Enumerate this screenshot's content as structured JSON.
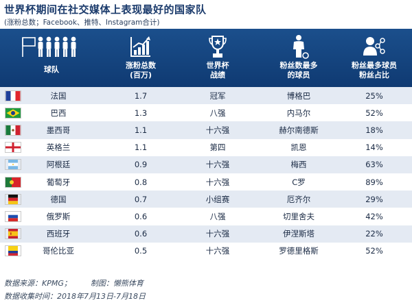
{
  "title": "世界杯期间在社交媒体上表现最好的国家队",
  "subtitle": "(涨粉总数；Facebook、推特、Instagram合计)",
  "columns": [
    {
      "label1": "球队",
      "label2": "",
      "icon": "team-players-icon"
    },
    {
      "label1": "涨粉总数",
      "label2": "(百万)",
      "icon": "growth-chart-icon"
    },
    {
      "label1": "世界杯",
      "label2": "战绩",
      "icon": "trophy-icon"
    },
    {
      "label1": "粉丝数最多",
      "label2": "的球员",
      "icon": "player-icon"
    },
    {
      "label1": "粉丝最多球员",
      "label2": "粉丝占比",
      "icon": "user-share-icon"
    }
  ],
  "rows": [
    {
      "team": "法国",
      "followers": "1.7",
      "result": "冠军",
      "player": "博格巴",
      "share": "25%",
      "flag": "france-flag-icon"
    },
    {
      "team": "巴西",
      "followers": "1.3",
      "result": "八强",
      "player": "内马尔",
      "share": "52%",
      "flag": "brazil-flag-icon"
    },
    {
      "team": "墨西哥",
      "followers": "1.1",
      "result": "十六强",
      "player": "赫尔南德斯",
      "share": "18%",
      "flag": "mexico-flag-icon"
    },
    {
      "team": "英格兰",
      "followers": "1.1",
      "result": "第四",
      "player": "凯恩",
      "share": "14%",
      "flag": "england-flag-icon"
    },
    {
      "team": "阿根廷",
      "followers": "0.9",
      "result": "十六强",
      "player": "梅西",
      "share": "63%",
      "flag": "argentina-flag-icon"
    },
    {
      "team": "葡萄牙",
      "followers": "0.8",
      "result": "十六强",
      "player": "C罗",
      "share": "89%",
      "flag": "portugal-flag-icon"
    },
    {
      "team": "德国",
      "followers": "0.7",
      "result": "小组赛",
      "player": "厄齐尔",
      "share": "29%",
      "flag": "germany-flag-icon"
    },
    {
      "team": "俄罗斯",
      "followers": "0.6",
      "result": "八强",
      "player": "切里舍夫",
      "share": "42%",
      "flag": "russia-flag-icon"
    },
    {
      "team": "西班牙",
      "followers": "0.6",
      "result": "十六强",
      "player": "伊涅斯塔",
      "share": "22%",
      "flag": "spain-flag-icon"
    },
    {
      "team": "哥伦比亚",
      "followers": "0.5",
      "result": "十六强",
      "player": "罗德里格斯",
      "share": "52%",
      "flag": "colombia-flag-icon"
    }
  ],
  "footer": {
    "source": "数据来源：KPMG；",
    "credit": "制图：懒熊体育",
    "period": "数据收集时间：2018年7月13日-7月18日"
  },
  "colors": {
    "header": "#154783",
    "stripe": "#e4eaf3",
    "title": "#1a3a6b"
  }
}
